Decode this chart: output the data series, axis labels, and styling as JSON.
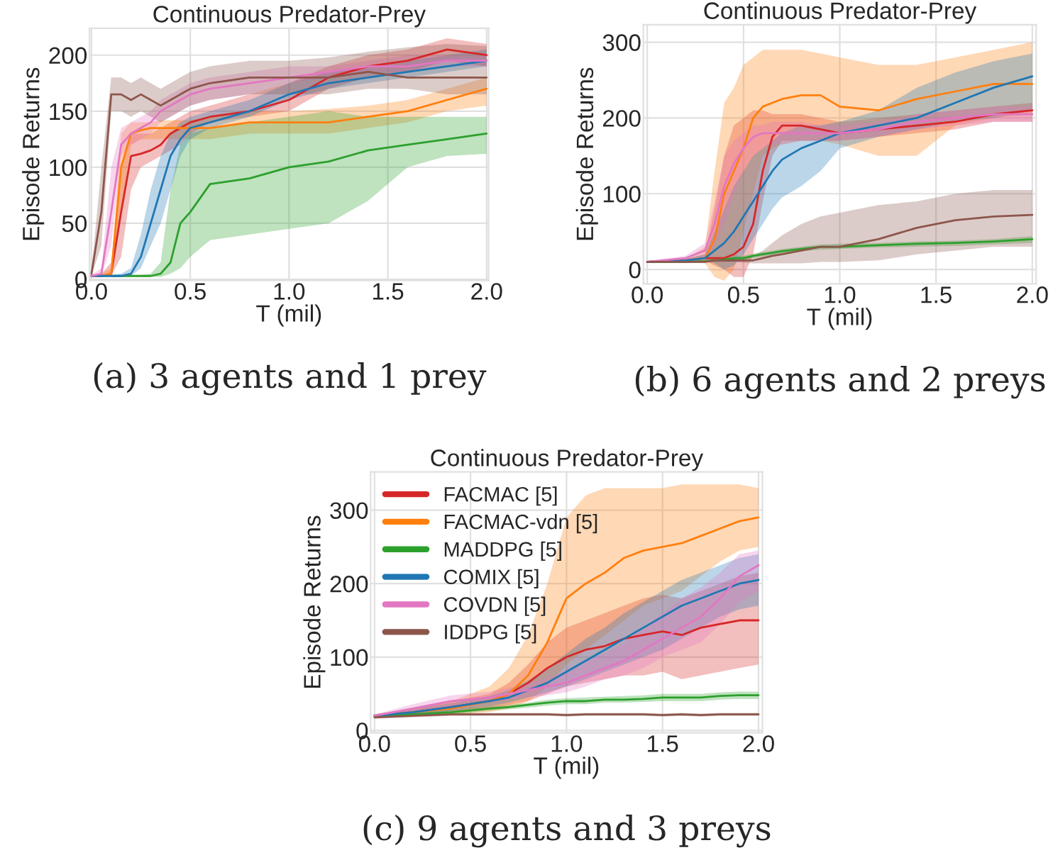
{
  "chart_data": [
    {
      "type": "line",
      "title": "Continuous Predator-Prey",
      "xlabel": "T (mil)",
      "ylabel": "Episode Returns",
      "annotations": [
        "(a) 3 agents and 1 prey"
      ],
      "grid": true,
      "legend": false,
      "xlim": [
        -0.01,
        2.01
      ],
      "ylim": [
        -1,
        224
      ],
      "xticks": [
        {
          "value": 0,
          "label": "0.0"
        },
        {
          "value": 0.5,
          "label": "0.5"
        },
        {
          "value": 1,
          "label": "1.0"
        },
        {
          "value": 1.5,
          "label": "1.5"
        },
        {
          "value": 2,
          "label": "2.0"
        }
      ],
      "yticks": [
        0,
        50,
        100,
        150,
        200
      ],
      "x": [
        0,
        0.05,
        0.1,
        0.15,
        0.2,
        0.25,
        0.3,
        0.35,
        0.4,
        0.45,
        0.5,
        0.6,
        0.8,
        1.0,
        1.2,
        1.4,
        1.6,
        1.8,
        2.0
      ],
      "series": [
        {
          "color": "#d62728",
          "values": [
            3,
            3,
            5,
            60,
            110,
            112,
            115,
            120,
            130,
            135,
            140,
            145,
            150,
            160,
            180,
            190,
            195,
            205,
            200
          ],
          "lower": [
            2,
            2,
            3,
            20,
            80,
            100,
            105,
            110,
            115,
            120,
            130,
            140,
            145,
            150,
            170,
            180,
            185,
            195,
            190
          ],
          "upper": [
            4,
            5,
            15,
            100,
            130,
            130,
            130,
            135,
            140,
            145,
            150,
            155,
            165,
            175,
            190,
            200,
            205,
            215,
            210
          ]
        },
        {
          "color": "#ff7f0e",
          "values": [
            3,
            3,
            5,
            100,
            130,
            133,
            135,
            135,
            135,
            135,
            135,
            135,
            140,
            140,
            140,
            145,
            150,
            160,
            170
          ],
          "lower": [
            2,
            2,
            3,
            60,
            120,
            125,
            125,
            125,
            125,
            125,
            125,
            125,
            130,
            130,
            130,
            135,
            140,
            150,
            155
          ],
          "upper": [
            4,
            5,
            10,
            130,
            140,
            140,
            140,
            142,
            142,
            142,
            142,
            145,
            150,
            150,
            152,
            155,
            160,
            170,
            180
          ]
        },
        {
          "color": "#2ca02c",
          "values": [
            null,
            null,
            3,
            3,
            3,
            3,
            3,
            5,
            15,
            50,
            60,
            85,
            90,
            100,
            105,
            115,
            120,
            125,
            130
          ],
          "lower": [
            2,
            2,
            2,
            2,
            2,
            2,
            2,
            2,
            5,
            10,
            20,
            35,
            40,
            45,
            50,
            70,
            100,
            110,
            112
          ],
          "upper": [
            4,
            4,
            4,
            4,
            4,
            4,
            5,
            15,
            80,
            120,
            130,
            135,
            140,
            145,
            150,
            145,
            145,
            145,
            145
          ]
        },
        {
          "color": "#1f77b4",
          "values": [
            3,
            3,
            3,
            3,
            5,
            20,
            50,
            80,
            110,
            125,
            135,
            140,
            150,
            165,
            175,
            180,
            185,
            190,
            195
          ],
          "lower": [
            2,
            2,
            2,
            2,
            3,
            10,
            30,
            50,
            80,
            110,
            125,
            135,
            145,
            160,
            170,
            175,
            180,
            185,
            190
          ],
          "upper": [
            4,
            4,
            4,
            5,
            10,
            40,
            80,
            110,
            130,
            140,
            145,
            150,
            160,
            175,
            185,
            190,
            195,
            200,
            205
          ]
        },
        {
          "color": "#e377c2",
          "values": [
            3,
            5,
            60,
            120,
            130,
            135,
            140,
            150,
            155,
            160,
            165,
            170,
            175,
            180,
            185,
            190,
            190,
            195,
            195
          ],
          "lower": [
            2,
            3,
            30,
            110,
            120,
            125,
            130,
            140,
            145,
            150,
            155,
            160,
            165,
            175,
            180,
            185,
            185,
            190,
            190
          ],
          "upper": [
            4,
            10,
            100,
            135,
            140,
            145,
            150,
            160,
            165,
            170,
            175,
            180,
            185,
            190,
            190,
            195,
            200,
            200,
            200
          ]
        },
        {
          "color": "#8c564b",
          "values": [
            5,
            60,
            165,
            165,
            160,
            165,
            160,
            155,
            160,
            165,
            170,
            175,
            180,
            180,
            180,
            185,
            180,
            180,
            180
          ],
          "lower": [
            3,
            30,
            150,
            150,
            145,
            150,
            145,
            140,
            145,
            150,
            155,
            160,
            165,
            165,
            165,
            170,
            170,
            165,
            165
          ],
          "upper": [
            8,
            100,
            180,
            180,
            175,
            180,
            175,
            170,
            175,
            180,
            185,
            190,
            195,
            195,
            198,
            203,
            207,
            210,
            208
          ]
        }
      ]
    },
    {
      "type": "line",
      "title": "Continuous Predator-Prey",
      "xlabel": "T (mil)",
      "ylabel": "Episode Returns",
      "annotations": [
        "(b) 6 agents and 2 preys"
      ],
      "grid": true,
      "legend": false,
      "xlim": [
        -0.02,
        2.02
      ],
      "ylim": [
        -19,
        323
      ],
      "xticks": [
        {
          "value": 0,
          "label": "0.0"
        },
        {
          "value": 0.5,
          "label": "0.5"
        },
        {
          "value": 1,
          "label": "1.0"
        },
        {
          "value": 1.5,
          "label": "1.5"
        },
        {
          "value": 2,
          "label": "2.0"
        }
      ],
      "yticks": [
        0,
        100,
        200,
        300
      ],
      "x": [
        0,
        0.2,
        0.3,
        0.35,
        0.4,
        0.45,
        0.5,
        0.55,
        0.6,
        0.65,
        0.7,
        0.8,
        0.9,
        1.0,
        1.2,
        1.4,
        1.6,
        1.8,
        2.0
      ],
      "series": [
        {
          "color": "#d62728",
          "values": [
            10,
            12,
            15,
            15,
            15,
            20,
            30,
            60,
            130,
            175,
            190,
            190,
            185,
            180,
            185,
            190,
            195,
            205,
            210
          ],
          "lower": [
            9,
            10,
            12,
            5,
            0,
            -10,
            -10,
            20,
            90,
            150,
            170,
            170,
            170,
            170,
            175,
            180,
            185,
            195,
            195
          ],
          "upper": [
            11,
            14,
            20,
            80,
            150,
            190,
            200,
            210,
            210,
            205,
            205,
            205,
            200,
            195,
            200,
            205,
            210,
            215,
            220
          ]
        },
        {
          "color": "#ff7f0e",
          "values": [
            10,
            12,
            15,
            40,
            100,
            130,
            160,
            200,
            215,
            220,
            225,
            230,
            230,
            215,
            210,
            225,
            235,
            245,
            245
          ],
          "lower": [
            9,
            10,
            8,
            -10,
            -15,
            0,
            50,
            100,
            150,
            160,
            165,
            170,
            170,
            165,
            150,
            150,
            190,
            200,
            205
          ],
          "upper": [
            11,
            14,
            30,
            130,
            220,
            240,
            270,
            280,
            290,
            290,
            290,
            290,
            285,
            280,
            270,
            270,
            280,
            290,
            300
          ]
        },
        {
          "color": "#2ca02c",
          "values": [
            10,
            10,
            11,
            12,
            13,
            15,
            15,
            18,
            20,
            22,
            24,
            27,
            30,
            30,
            32,
            34,
            35,
            37,
            40
          ],
          "lower": [
            9,
            9,
            10,
            11,
            12,
            13,
            13,
            15,
            17,
            19,
            21,
            24,
            26,
            27,
            29,
            30,
            31,
            33,
            35
          ],
          "upper": [
            11,
            11,
            12,
            13,
            14,
            17,
            18,
            21,
            23,
            25,
            27,
            30,
            33,
            34,
            35,
            37,
            38,
            40,
            44
          ]
        },
        {
          "color": "#1f77b4",
          "values": [
            10,
            12,
            15,
            25,
            35,
            50,
            70,
            90,
            110,
            130,
            145,
            160,
            170,
            180,
            190,
            200,
            220,
            240,
            255
          ],
          "lower": [
            9,
            10,
            12,
            8,
            0,
            5,
            20,
            40,
            60,
            80,
            95,
            110,
            130,
            160,
            175,
            185,
            195,
            200,
            210
          ],
          "upper": [
            11,
            14,
            20,
            50,
            80,
            110,
            130,
            150,
            160,
            170,
            180,
            190,
            190,
            195,
            210,
            240,
            260,
            275,
            285
          ]
        },
        {
          "color": "#e377c2",
          "values": [
            10,
            15,
            25,
            60,
            110,
            140,
            160,
            175,
            180,
            180,
            180,
            180,
            180,
            180,
            185,
            195,
            200,
            205,
            205
          ],
          "lower": [
            9,
            12,
            18,
            30,
            60,
            100,
            130,
            150,
            160,
            165,
            165,
            170,
            170,
            170,
            175,
            185,
            190,
            195,
            195
          ],
          "upper": [
            11,
            18,
            35,
            90,
            150,
            170,
            180,
            190,
            190,
            195,
            195,
            195,
            190,
            190,
            195,
            205,
            210,
            215,
            215
          ]
        },
        {
          "color": "#8c564b",
          "values": [
            10,
            10,
            10,
            12,
            12,
            12,
            12,
            12,
            15,
            18,
            20,
            25,
            30,
            30,
            40,
            55,
            65,
            70,
            72
          ],
          "lower": [
            9,
            9,
            9,
            10,
            10,
            10,
            9,
            8,
            8,
            8,
            8,
            8,
            10,
            10,
            12,
            20,
            25,
            30,
            30
          ],
          "upper": [
            11,
            11,
            11,
            14,
            14,
            15,
            16,
            18,
            25,
            35,
            45,
            60,
            70,
            75,
            85,
            90,
            100,
            105,
            105
          ]
        }
      ]
    },
    {
      "type": "line",
      "title": "Continuous Predator-Prey",
      "xlabel": "T (mil)",
      "ylabel": "Episode Returns",
      "annotations": [
        "(c) 9 agents and 3 preys"
      ],
      "grid": true,
      "legend": "top left",
      "xlim": [
        -0.02,
        2.02
      ],
      "ylim": [
        -3,
        352
      ],
      "xticks": [
        {
          "value": 0,
          "label": "0.0"
        },
        {
          "value": 0.5,
          "label": "0.5"
        },
        {
          "value": 1,
          "label": "1.0"
        },
        {
          "value": 1.5,
          "label": "1.5"
        },
        {
          "value": 2,
          "label": "2.0"
        }
      ],
      "yticks": [
        0,
        100,
        200,
        300
      ],
      "x": [
        0,
        0.2,
        0.4,
        0.6,
        0.7,
        0.8,
        0.9,
        1.0,
        1.1,
        1.2,
        1.3,
        1.4,
        1.5,
        1.6,
        1.7,
        1.8,
        1.9,
        2.0
      ],
      "series": [
        {
          "name": "FACMAC [5]",
          "color": "#d62728",
          "values": [
            20,
            25,
            32,
            40,
            50,
            65,
            85,
            100,
            110,
            115,
            125,
            130,
            135,
            130,
            140,
            145,
            150,
            150
          ],
          "lower": [
            18,
            20,
            25,
            30,
            35,
            40,
            50,
            60,
            65,
            70,
            75,
            75,
            80,
            70,
            75,
            80,
            85,
            90
          ],
          "upper": [
            22,
            30,
            40,
            50,
            65,
            90,
            120,
            140,
            150,
            160,
            170,
            180,
            185,
            180,
            190,
            200,
            210,
            215
          ]
        },
        {
          "name": "FACMAC-vdn [5]",
          "color": "#ff7f0e",
          "values": [
            20,
            25,
            30,
            40,
            50,
            75,
            120,
            180,
            200,
            215,
            235,
            245,
            250,
            255,
            265,
            275,
            285,
            290
          ],
          "lower": [
            18,
            20,
            22,
            25,
            30,
            40,
            60,
            90,
            110,
            130,
            150,
            170,
            180,
            190,
            210,
            230,
            245,
            250
          ],
          "upper": [
            22,
            30,
            40,
            60,
            85,
            130,
            200,
            290,
            320,
            330,
            330,
            330,
            330,
            335,
            335,
            335,
            335,
            330
          ]
        },
        {
          "name": "MADDPG [5]",
          "color": "#2ca02c",
          "values": [
            20,
            22,
            25,
            30,
            32,
            35,
            38,
            40,
            40,
            42,
            42,
            43,
            45,
            45,
            45,
            47,
            48,
            48
          ],
          "lower": [
            18,
            20,
            22,
            27,
            29,
            31,
            34,
            36,
            36,
            38,
            38,
            39,
            40,
            40,
            40,
            42,
            43,
            43
          ],
          "upper": [
            22,
            24,
            28,
            33,
            35,
            38,
            42,
            44,
            45,
            46,
            47,
            48,
            50,
            50,
            50,
            52,
            53,
            53
          ]
        },
        {
          "name": "COMIX [5]",
          "color": "#1f77b4",
          "values": [
            20,
            25,
            32,
            40,
            45,
            55,
            65,
            80,
            95,
            110,
            125,
            140,
            155,
            170,
            180,
            190,
            200,
            205
          ],
          "lower": [
            18,
            20,
            27,
            33,
            38,
            45,
            52,
            60,
            70,
            80,
            90,
            100,
            110,
            125,
            140,
            155,
            165,
            170
          ],
          "upper": [
            22,
            30,
            37,
            47,
            55,
            68,
            85,
            105,
            125,
            140,
            160,
            175,
            190,
            205,
            215,
            225,
            235,
            240
          ]
        },
        {
          "name": "COVDN [5]",
          "color": "#e377c2",
          "values": [
            20,
            30,
            40,
            45,
            50,
            55,
            60,
            65,
            75,
            85,
            95,
            110,
            125,
            140,
            155,
            180,
            210,
            225
          ],
          "lower": [
            18,
            24,
            33,
            38,
            42,
            45,
            48,
            52,
            60,
            70,
            75,
            85,
            100,
            110,
            120,
            145,
            175,
            190
          ],
          "upper": [
            22,
            36,
            48,
            53,
            58,
            65,
            72,
            80,
            95,
            105,
            120,
            140,
            160,
            180,
            195,
            215,
            240,
            245
          ]
        },
        {
          "name": "IDDPG [5]",
          "color": "#8c564b",
          "values": [
            18,
            20,
            22,
            22,
            22,
            22,
            22,
            21,
            22,
            22,
            22,
            22,
            21,
            22,
            21,
            22,
            22,
            22
          ],
          "lower": [
            16,
            18,
            20,
            20,
            20,
            20,
            20,
            19,
            20,
            20,
            20,
            20,
            19,
            20,
            19,
            20,
            20,
            20
          ],
          "upper": [
            20,
            22,
            24,
            24,
            24,
            24,
            24,
            23,
            24,
            24,
            24,
            24,
            23,
            24,
            23,
            24,
            24,
            24
          ]
        }
      ]
    }
  ]
}
